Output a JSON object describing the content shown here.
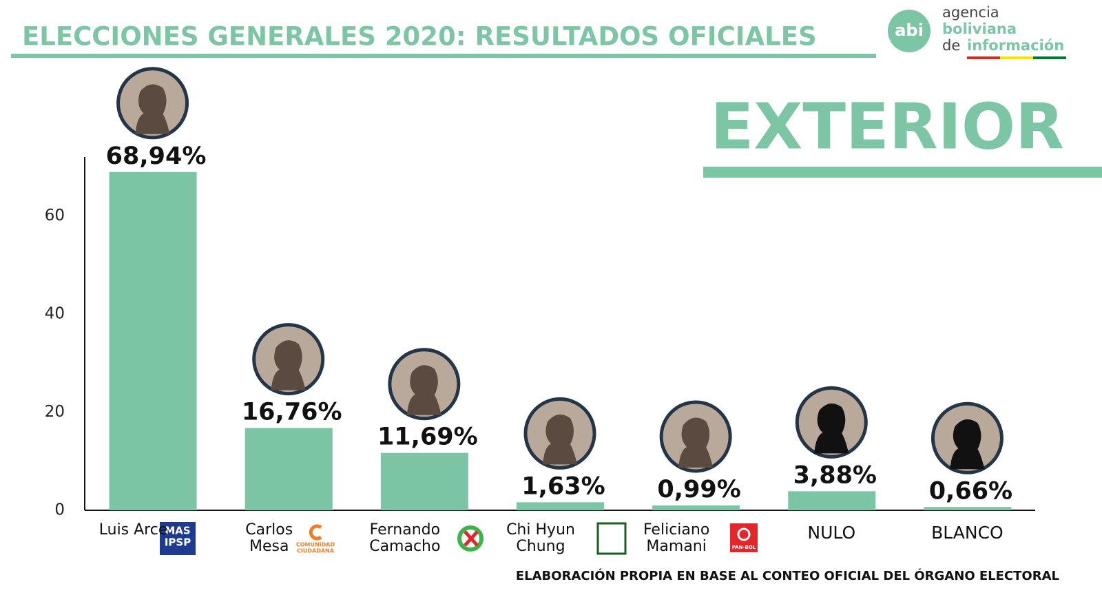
{
  "header": {
    "title": "ELECCIONES GENERALES 2020: RESULTADOS OFICIALES",
    "logo": {
      "mark": "abi",
      "line1": "agencia",
      "line2": "boliviana",
      "line3a": "de",
      "line3b": "información"
    },
    "subtitle": "EXTERIOR"
  },
  "chart_data": {
    "type": "bar",
    "categories": [
      "Luis Arce",
      "Carlos Mesa",
      "Fernando Camacho",
      "Chi Hyun Chung",
      "Feliciano Mamani",
      "NULO",
      "BLANCO"
    ],
    "values": [
      68.94,
      16.76,
      11.69,
      1.63,
      0.99,
      3.88,
      0.66
    ],
    "value_labels": [
      "68,94%",
      "16,76%",
      "11,69%",
      "1,63%",
      "0,99%",
      "3,88%",
      "0,66%"
    ],
    "color": "#7bc4a4",
    "ylim": [
      0,
      72
    ],
    "yticks": [
      0,
      20,
      40,
      60
    ],
    "grid": false
  },
  "party_logos": {
    "mas": [
      "MAS",
      "IPSP"
    ],
    "cc": [
      "COMUNIDAD",
      "CIUDADANA"
    ],
    "panbol": "PAN-BOL"
  },
  "footer": {
    "source": "ELABORACIÓN PROPIA EN BASE AL CONTEO OFICIAL DEL ÓRGANO ELECTORAL"
  }
}
